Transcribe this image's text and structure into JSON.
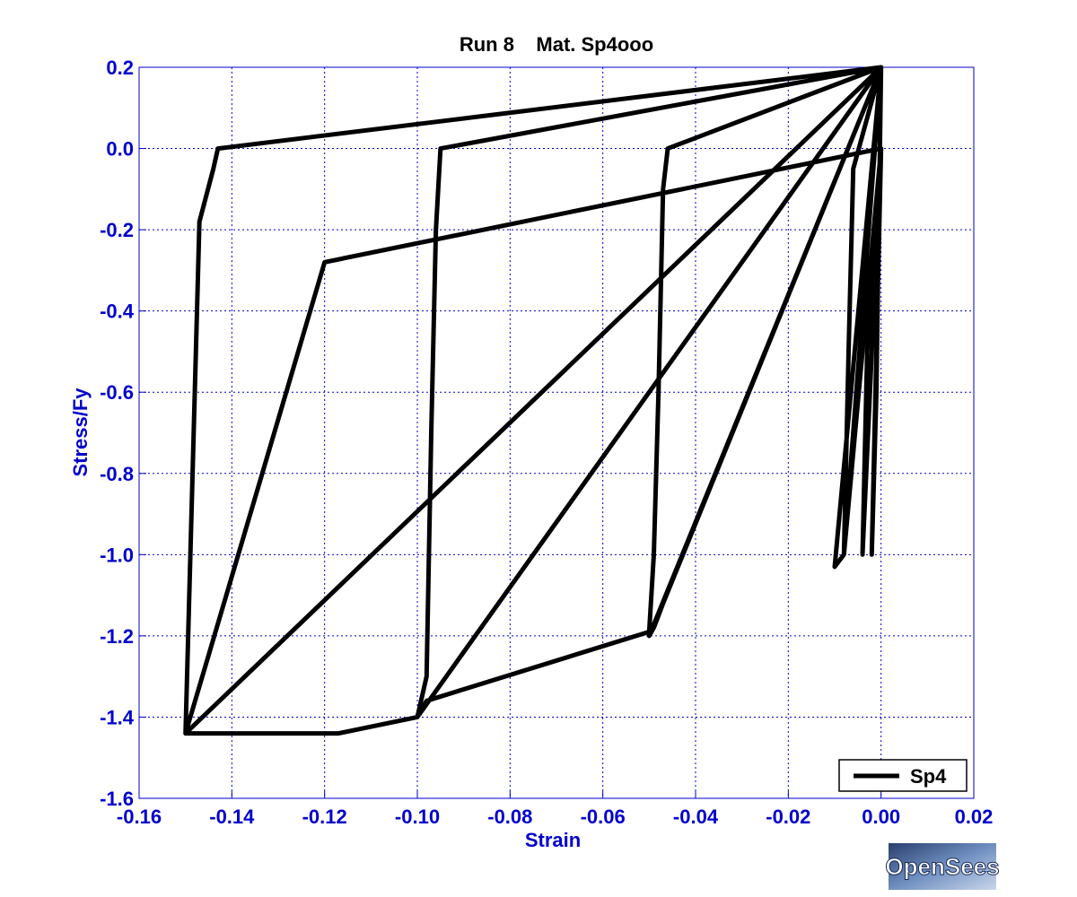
{
  "chart_data": {
    "type": "line",
    "title": "Run 8    Mat. Sp4ooo",
    "xlabel": "Strain",
    "ylabel": "Stress/Fy",
    "xlim": [
      -0.16,
      0.02
    ],
    "ylim": [
      -1.6,
      0.2
    ],
    "xticks": [
      -0.16,
      -0.14,
      -0.12,
      -0.1,
      -0.08,
      -0.06,
      -0.04,
      -0.02,
      0.0,
      0.02
    ],
    "xtick_labels": [
      "-0.16",
      "-0.14",
      "-0.12",
      "-0.10",
      "-0.08",
      "-0.06",
      "-0.04",
      "-0.02",
      "0.00",
      "0.02"
    ],
    "yticks": [
      0.2,
      0.0,
      -0.2,
      -0.4,
      -0.6,
      -0.8,
      -1.0,
      -1.2,
      -1.4,
      -1.6
    ],
    "ytick_labels": [
      "0.2",
      "0.0",
      "-0.2",
      "-0.4",
      "-0.6",
      "-0.8",
      "-1.0",
      "-1.2",
      "-1.4",
      "-1.6"
    ],
    "grid": true,
    "legend": {
      "position": "bottom-right",
      "entries": [
        "Sp4"
      ]
    },
    "series": [
      {
        "name": "Sp4",
        "color": "#000000",
        "x": [
          0.0,
          -0.001,
          -0.002,
          0.0,
          -0.003,
          -0.004,
          0.0,
          -0.008,
          -0.01,
          0.0,
          -0.006,
          -0.007,
          -0.008,
          0.0,
          -0.047,
          -0.049,
          -0.05,
          0.0,
          -0.046,
          -0.047,
          -0.048,
          -0.049,
          -0.05,
          -0.098,
          -0.099,
          -0.1,
          0.0,
          -0.095,
          -0.096,
          -0.097,
          -0.098,
          -0.1,
          -0.117,
          -0.15,
          0.0,
          -0.143,
          -0.144,
          -0.147,
          -0.15,
          -0.12,
          0.0
        ],
        "y": [
          0.2,
          -0.6,
          -1.0,
          0.0,
          -0.5,
          -1.0,
          0.0,
          -1.0,
          -1.03,
          0.2,
          -0.05,
          -0.5,
          -1.0,
          0.2,
          -1.12,
          -1.18,
          -1.2,
          0.2,
          0.0,
          -0.1,
          -0.6,
          -1.0,
          -1.19,
          -1.36,
          -1.38,
          -1.4,
          0.2,
          0.0,
          -0.2,
          -0.7,
          -1.3,
          -1.4,
          -1.44,
          -1.44,
          0.2,
          0.0,
          -0.05,
          -0.18,
          -1.44,
          -0.28,
          0.0
        ]
      }
    ]
  },
  "logo": {
    "text": "OpenSees"
  }
}
